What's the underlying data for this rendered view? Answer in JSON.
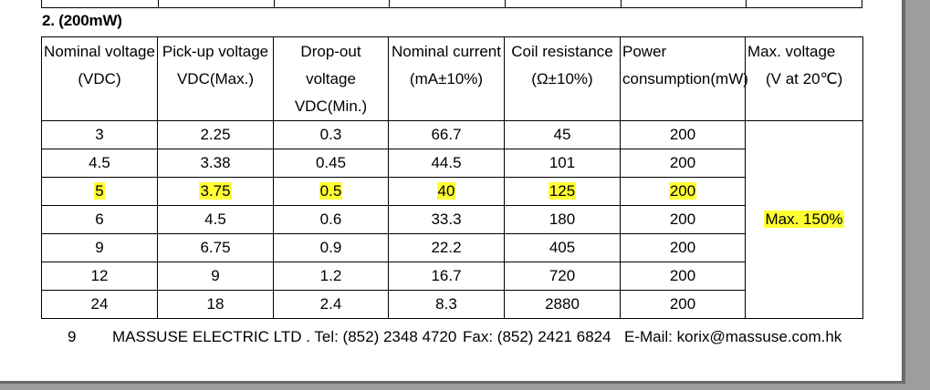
{
  "section_title": "2. (200mW)",
  "table": {
    "headers": [
      {
        "line1": "Nominal voltage",
        "line2": "(VDC)"
      },
      {
        "line1": "Pick-up voltage",
        "line2": "VDC(Max.)"
      },
      {
        "line1": "Drop-out voltage",
        "line2": "VDC(Min.)"
      },
      {
        "line1": "Nominal current",
        "line2": "(mA±10%)"
      },
      {
        "line1": "Coil resistance",
        "line2": "(Ω±10%)"
      },
      {
        "line1": "Power",
        "line2": "consumption(mW)"
      },
      {
        "line1": "Max. voltage",
        "line2": "(V at 20℃)"
      }
    ],
    "rows": [
      [
        "3",
        "2.25",
        "0.3",
        "66.7",
        "45",
        "200"
      ],
      [
        "4.5",
        "3.38",
        "0.45",
        "44.5",
        "101",
        "200"
      ],
      [
        "5",
        "3.75",
        "0.5",
        "40",
        "125",
        "200"
      ],
      [
        "6",
        "4.5",
        "0.6",
        "33.3",
        "180",
        "200"
      ],
      [
        "9",
        "6.75",
        "0.9",
        "22.2",
        "405",
        "200"
      ],
      [
        "12",
        "9",
        "1.2",
        "16.7",
        "720",
        "200"
      ],
      [
        "24",
        "18",
        "2.4",
        "8.3",
        "2880",
        "200"
      ]
    ],
    "highlighted_row_index": 2,
    "max_voltage_value": "Max. 150%",
    "highlight_color": "#ffff33"
  },
  "footer": {
    "page_number": "9",
    "company": "MASSUSE ELECTRIC LTD . Tel: (852) 2348 4720",
    "fax": "Fax: (852) 2421 6824",
    "email": "E-Mail: korix@massuse.com.hk"
  }
}
